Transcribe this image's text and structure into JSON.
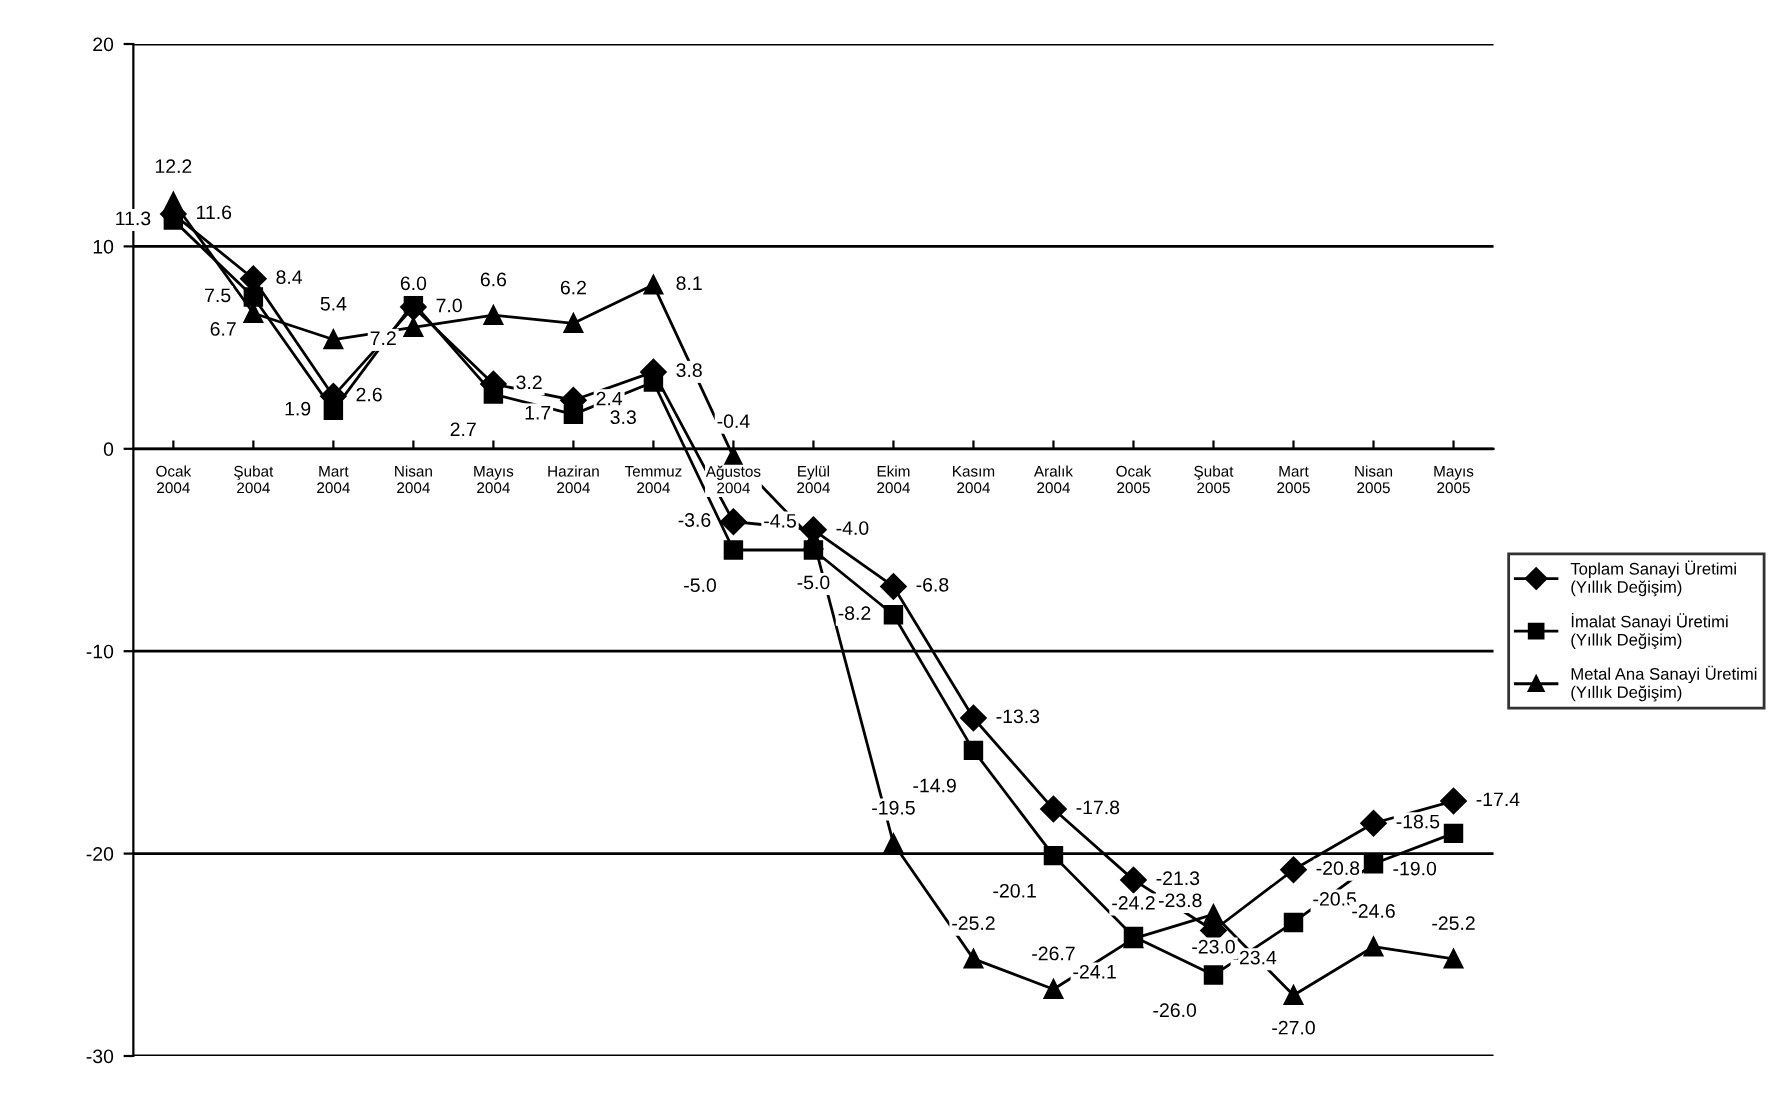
{
  "chart_data": {
    "type": "line",
    "categories": [
      "Ocak\n2004",
      "Şubat\n2004",
      "Mart\n2004",
      "Nisan\n2004",
      "Mayıs\n2004",
      "Haziran\n2004",
      "Temmuz\n2004",
      "Ağustos\n2004",
      "Eylül\n2004",
      "Ekim\n2004",
      "Kasım\n2004",
      "Aralık\n2004",
      "Ocak\n2005",
      "Şubat\n2005",
      "Mart\n2005",
      "Nisan\n2005",
      "Mayıs\n2005"
    ],
    "series": [
      {
        "name": "Toplam Sanayi Üretimi\n(Yıllık Değişim)",
        "color": "#000000",
        "marker": "diamond",
        "values": [
          11.6,
          8.4,
          2.6,
          7.0,
          3.2,
          2.4,
          3.8,
          -3.6,
          -4.0,
          -6.8,
          -13.3,
          -17.8,
          -21.3,
          -23.8,
          -20.8,
          -18.5,
          -17.4
        ],
        "value_labels": [
          "11.6",
          "8.4",
          "2.6",
          "7.0",
          "3.2",
          "2.4",
          "3.8",
          "-3.6",
          "-4.0",
          "-6.8",
          "-13.3",
          "-17.8",
          "-21.3",
          "-23.8",
          "-20.8",
          "-18.5",
          "-17.4"
        ]
      },
      {
        "name": "İmalat Sanayi Üretimi\n(Yıllık Değişim)",
        "color": "#000000",
        "marker": "square",
        "values": [
          11.3,
          7.5,
          1.9,
          7.2,
          2.7,
          1.7,
          3.3,
          -5.0,
          -5.0,
          -8.2,
          -14.9,
          -20.1,
          -24.1,
          -26.0,
          -23.4,
          -20.5,
          -19.0
        ],
        "value_labels": [
          "11.3",
          "7.5",
          "1.9",
          "7.2",
          "2.7",
          "1.7",
          "3.3",
          "-5.0",
          "-5.0",
          "-8.2",
          "-14.9",
          "-20.1",
          "-24.1",
          "-26.0",
          "-23.4",
          "-20.5",
          "-19.0"
        ]
      },
      {
        "name": "Metal Ana Sanayi Üretimi\n(Yıllık Değişim)",
        "color": "#000000",
        "marker": "triangle",
        "values": [
          12.2,
          6.7,
          5.4,
          6.0,
          6.6,
          6.2,
          8.1,
          -0.4,
          -4.5,
          -19.5,
          -25.2,
          -26.7,
          -24.2,
          -23.0,
          -27.0,
          -24.6,
          -25.2
        ],
        "value_labels": [
          "12.2",
          "6.7",
          "5.4",
          "6.0",
          "6.6",
          "6.2",
          "8.1",
          "-0.4",
          "-4.5",
          "-19.5",
          "-25.2",
          "-26.7",
          "-24.2",
          "-23.0",
          "-27.0",
          "-24.6",
          "-25.2"
        ]
      }
    ],
    "ylim": [
      -30,
      20
    ],
    "yticks": [
      -30,
      -20,
      -10,
      0,
      10,
      20
    ],
    "grid": "y",
    "legend": "right",
    "line_style": "solid"
  }
}
